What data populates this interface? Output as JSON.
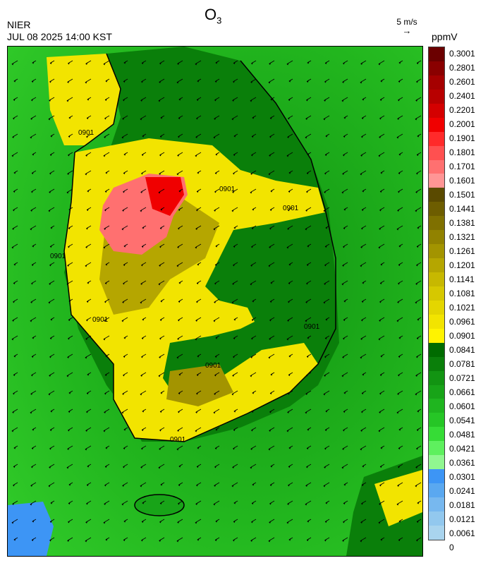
{
  "header": {
    "title_main": "O",
    "title_sub": "3",
    "agency": "NIER",
    "datetime": "JUL 08 2025 14:00 KST",
    "wind_reference": "5 m/s",
    "unit": "ppmV"
  },
  "map": {
    "contour_labels": [
      "0901",
      "0901",
      "0901",
      "0901",
      "0901",
      "0901",
      "0901",
      "0901"
    ],
    "background_color": "#22b61e",
    "wind_direction": "southwest-bound (from northeast)"
  },
  "colorbar": {
    "labels": [
      "0.3001",
      "0.2801",
      "0.2601",
      "0.2401",
      "0.2201",
      "0.2001",
      "0.1901",
      "0.1801",
      "0.1701",
      "0.1601",
      "0.1501",
      "0.1441",
      "0.1381",
      "0.1321",
      "0.1261",
      "0.1201",
      "0.1141",
      "0.1081",
      "0.1021",
      "0.0961",
      "0.0901",
      "0.0841",
      "0.0781",
      "0.0721",
      "0.0661",
      "0.0601",
      "0.0541",
      "0.0481",
      "0.0421",
      "0.0361",
      "0.0301",
      "0.0241",
      "0.0181",
      "0.0121",
      "0.0061",
      "0"
    ],
    "colors": [
      "#6b0000",
      "#8a0000",
      "#a50000",
      "#b80000",
      "#d40000",
      "#f00000",
      "#ff2a2a",
      "#ff5050",
      "#ff7070",
      "#ff9595",
      "#5a4a00",
      "#6d5d00",
      "#7f7000",
      "#918200",
      "#a39400",
      "#b5a600",
      "#c7b800",
      "#d6c800",
      "#e4d600",
      "#f2e400",
      "#fff300",
      "#006b00",
      "#0a7f0a",
      "#129412",
      "#18a418",
      "#1fb51f",
      "#26c626",
      "#36dc36",
      "#5ef05e",
      "#90f790",
      "#3d95f5",
      "#5aa8f0",
      "#77b8ef",
      "#92c8ee",
      "#a9d4ee"
    ]
  }
}
